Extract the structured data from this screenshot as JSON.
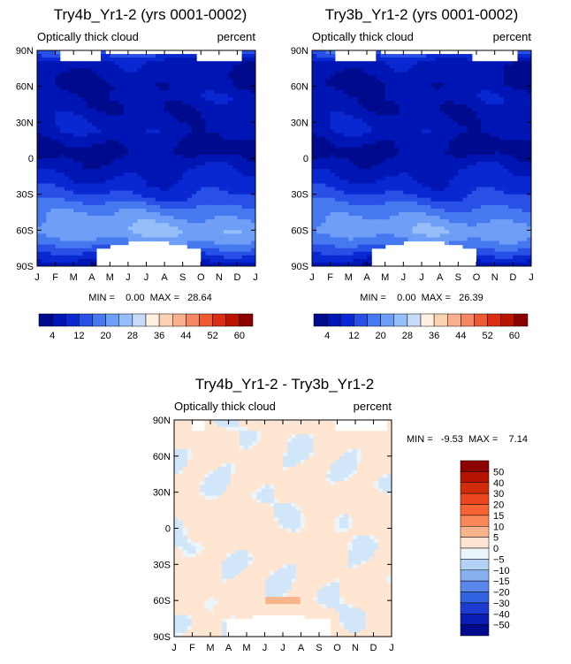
{
  "chart_data": [
    {
      "type": "heatmap",
      "title": "Try4b_Yr1-2 (yrs 0001-0002)",
      "subtitle_left": "Optically thick cloud",
      "subtitle_right": "percent",
      "x_ticks": [
        "J",
        "F",
        "M",
        "A",
        "M",
        "J",
        "J",
        "A",
        "S",
        "O",
        "N",
        "D",
        "J"
      ],
      "y_ticks": [
        "90N",
        "60N",
        "30N",
        "0",
        "30S",
        "60S",
        "90S"
      ],
      "stats": "MIN =    0.00  MAX =   28.64",
      "min": 0.0,
      "max": 28.64,
      "colorbar_labels": [
        "4",
        "12",
        "20",
        "28",
        "36",
        "44",
        "52",
        "60"
      ],
      "colorbar_colors": [
        "#000a8c",
        "#0016b4",
        "#0a28d2",
        "#2850e6",
        "#4678f0",
        "#6e9ef5",
        "#96bef8",
        "#c8dcfa",
        "#fff0e1",
        "#fcd2b4",
        "#f9af8c",
        "#f78764",
        "#f05a32",
        "#dc2d14",
        "#b91400",
        "#8c0000"
      ],
      "profile": [
        14,
        6,
        5,
        4,
        6,
        5,
        6,
        7,
        4,
        3,
        6,
        8,
        10,
        13,
        18,
        21,
        24,
        20,
        12,
        5
      ],
      "map_colors": [
        "#000a8c",
        "#0016b4",
        "#0a28d2",
        "#2850e6",
        "#4678f0",
        "#6e9ef5",
        "#96bef8"
      ],
      "levels": [
        4,
        8,
        12,
        16,
        20,
        24
      ]
    },
    {
      "type": "heatmap",
      "title": "Try3b_Yr1-2 (yrs 0001-0002)",
      "subtitle_left": "Optically thick cloud",
      "subtitle_right": "percent",
      "x_ticks": [
        "J",
        "F",
        "M",
        "A",
        "M",
        "J",
        "J",
        "A",
        "S",
        "O",
        "N",
        "D",
        "J"
      ],
      "y_ticks": [
        "90N",
        "60N",
        "30N",
        "0",
        "30S",
        "60S",
        "90S"
      ],
      "stats": "MIN =    0.00  MAX =   26.39",
      "min": 0.0,
      "max": 26.39,
      "colorbar_labels": [
        "4",
        "12",
        "20",
        "28",
        "36",
        "44",
        "52",
        "60"
      ],
      "colorbar_colors": [
        "#000a8c",
        "#0016b4",
        "#0a28d2",
        "#2850e6",
        "#4678f0",
        "#6e9ef5",
        "#96bef8",
        "#c8dcfa",
        "#fff0e1",
        "#fcd2b4",
        "#f9af8c",
        "#f78764",
        "#f05a32",
        "#dc2d14",
        "#b91400",
        "#8c0000"
      ],
      "profile": [
        14,
        6,
        5,
        4,
        6,
        5,
        6,
        7,
        4,
        3,
        6,
        8,
        10,
        13,
        17,
        20,
        23,
        19,
        12,
        5
      ],
      "map_colors": [
        "#000a8c",
        "#0016b4",
        "#0a28d2",
        "#2850e6",
        "#4678f0",
        "#6e9ef5",
        "#96bef8"
      ],
      "levels": [
        4,
        8,
        12,
        16,
        20,
        24
      ]
    },
    {
      "type": "heatmap",
      "title": "Try4b_Yr1-2 - Try3b_Yr1-2",
      "subtitle_left": "Optically thick cloud",
      "subtitle_right": "percent",
      "x_ticks": [
        "J",
        "F",
        "M",
        "A",
        "M",
        "J",
        "J",
        "A",
        "S",
        "O",
        "N",
        "D",
        "J"
      ],
      "y_ticks": [
        "90N",
        "60N",
        "30N",
        "0",
        "30S",
        "60S",
        "90S"
      ],
      "stats": "MIN =   -9.53  MAX =    7.14",
      "min": -9.53,
      "max": 7.14,
      "colorbar_labels": [
        "50",
        "40",
        "30",
        "20",
        "15",
        "10",
        "5",
        "0",
        "-5",
        "-10",
        "-15",
        "-20",
        "-30",
        "-40",
        "-50"
      ],
      "colorbar_colors": [
        "#8c0000",
        "#b41400",
        "#d22d0a",
        "#eb461e",
        "#f56432",
        "#f8875a",
        "#fab48c",
        "#ffe6d2",
        "#ebf5fc",
        "#b4d2f5",
        "#87aff0",
        "#5a87eb",
        "#3264e1",
        "#1e3cd2",
        "#0a1eb4",
        "#000a8c"
      ]
    }
  ]
}
